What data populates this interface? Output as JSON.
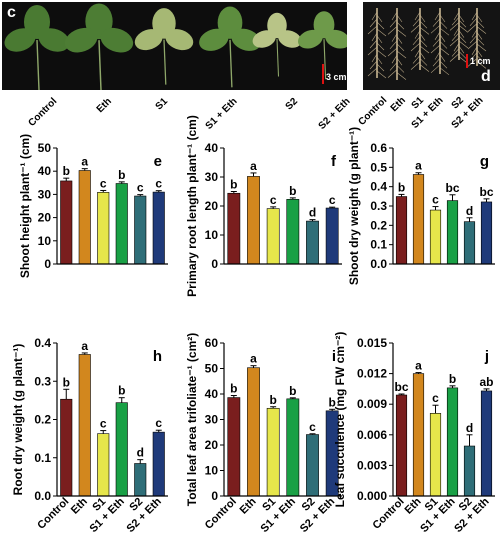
{
  "photos": {
    "leaf": {
      "tag": "c",
      "scale_bar": "3 cm",
      "labels": [
        "Control",
        "Eth",
        "S1",
        "S1 + Eth",
        "S2",
        "S2 + Eth"
      ],
      "background": "#0d0d0d",
      "leaf_colors": [
        "#4a7a32",
        "#4d7d34",
        "#a6b874",
        "#5d8d3e",
        "#b8c487",
        "#6e9a4a"
      ]
    },
    "root": {
      "tag": "d",
      "scale_bar": "1 cm",
      "labels": [
        "Control",
        "Eth",
        "S1",
        "S1 + Eth",
        "S2",
        "S2 + Eth"
      ],
      "background": "#141414",
      "root_color": "#c9b691"
    }
  },
  "colors": [
    "#7a1e1e",
    "#d2871e",
    "#e6e64b",
    "#19a045",
    "#2f6e78",
    "#1f3a7a"
  ],
  "chart_data": [
    {
      "type": "bar",
      "panel": "e",
      "ylabel": "Shoot height plant⁻¹ (cm)",
      "categories": [
        "Control",
        "Eth",
        "S1",
        "S1 + Eth",
        "S2",
        "S2 + Eth"
      ],
      "values": [
        35.8,
        40.3,
        30.9,
        34.7,
        29.3,
        31.0
      ],
      "errors": [
        1.2,
        0.8,
        0.8,
        0.7,
        0.6,
        0.6
      ],
      "letters": [
        "b",
        "a",
        "c",
        "b",
        "c",
        "c"
      ],
      "ylim": [
        0,
        50
      ],
      "yticks": [
        "0",
        "10",
        "20",
        "30",
        "40",
        "50"
      ],
      "show_xticklabels": false
    },
    {
      "type": "bar",
      "panel": "f",
      "ylabel": "Primary root length plant⁻¹ (cm)",
      "categories": [
        "Control",
        "Eth",
        "S1",
        "S1 + Eth",
        "S2",
        "S2 + Eth"
      ],
      "values": [
        24.4,
        30.2,
        19.1,
        22.3,
        14.8,
        19.3
      ],
      "errors": [
        0.6,
        1.2,
        0.6,
        0.5,
        0.5,
        0.3
      ],
      "letters": [
        "b",
        "a",
        "c",
        "b",
        "d",
        "c"
      ],
      "ylim": [
        0,
        40
      ],
      "yticks": [
        "0",
        "10",
        "20",
        "30",
        "40"
      ],
      "show_xticklabels": false
    },
    {
      "type": "bar",
      "panel": "g",
      "ylabel": "Shoot dry weight (g plant⁻¹)",
      "categories": [
        "Control",
        "Eth",
        "S1",
        "S1 + Eth",
        "S2",
        "S2 + Eth"
      ],
      "values": [
        0.349,
        0.463,
        0.279,
        0.328,
        0.219,
        0.321
      ],
      "errors": [
        0.011,
        0.009,
        0.018,
        0.03,
        0.02,
        0.016
      ],
      "letters": [
        "b",
        "a",
        "c",
        "bc",
        "d",
        "bc"
      ],
      "ylim": [
        0,
        0.6
      ],
      "yticks": [
        "0.0",
        "0.1",
        "0.2",
        "0.3",
        "0.4",
        "0.5",
        "0.6"
      ],
      "show_xticklabels": false
    },
    {
      "type": "bar",
      "panel": "h",
      "ylabel": "Root dry weight (g plant⁻¹)",
      "categories": [
        "Control",
        "Eth",
        "S1",
        "S1 + Eth",
        "S2",
        "S2 + Eth"
      ],
      "values": [
        0.253,
        0.37,
        0.163,
        0.244,
        0.085,
        0.167
      ],
      "errors": [
        0.026,
        0.004,
        0.008,
        0.013,
        0.01,
        0.005
      ],
      "letters": [
        "b",
        "a",
        "c",
        "b",
        "d",
        "c"
      ],
      "ylim": [
        0,
        0.4
      ],
      "yticks": [
        "0.0",
        "0.1",
        "0.2",
        "0.3",
        "0.4"
      ],
      "show_xticklabels": true
    },
    {
      "type": "bar",
      "panel": "i",
      "ylabel": "Total leaf area trifoliate⁻¹ (cm²)",
      "categories": [
        "Control",
        "Eth",
        "S1",
        "S1 + Eth",
        "S2",
        "S2 + Eth"
      ],
      "values": [
        38.6,
        50.3,
        34.4,
        38.1,
        24.1,
        33.4
      ],
      "errors": [
        0.8,
        0.8,
        0.6,
        0.4,
        0.3,
        0.6
      ],
      "letters": [
        "b",
        "a",
        "b",
        "b",
        "c",
        "b"
      ],
      "ylim": [
        0,
        60
      ],
      "yticks": [
        "0",
        "10",
        "20",
        "30",
        "40",
        "50",
        "60"
      ],
      "show_xticklabels": true
    },
    {
      "type": "bar",
      "panel": "j",
      "ylabel": "Leaf succulence (mg FW cm⁻²)",
      "categories": [
        "Control",
        "Eth",
        "S1",
        "S1 + Eth",
        "S2",
        "S2 + Eth"
      ],
      "values": [
        0.0099,
        0.012,
        0.0081,
        0.0106,
        0.0049,
        0.0103
      ],
      "errors": [
        0.0001,
        0.0001,
        0.0008,
        0.0002,
        0.0011,
        0.0002
      ],
      "letters": [
        "bc",
        "a",
        "c",
        "b",
        "d",
        "ab"
      ],
      "ylim": [
        0,
        0.015
      ],
      "yticks": [
        "0.000",
        "0.003",
        "0.006",
        "0.009",
        "0.012",
        "0.015"
      ],
      "show_xticklabels": true
    }
  ]
}
